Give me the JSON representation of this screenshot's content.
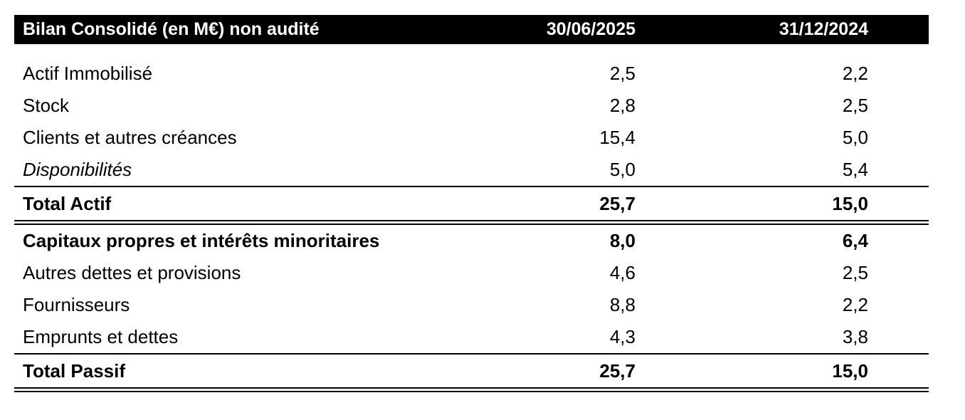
{
  "page": {
    "background": "#ffffff"
  },
  "table": {
    "title": "Bilan Consolidé (en M€) non audité",
    "columns": [
      "30/06/2025",
      "31/12/2024"
    ],
    "colors": {
      "header_bg": "#000000",
      "header_text": "#ffffff",
      "body_text": "#000000",
      "rule": "#000000"
    },
    "rows": [
      {
        "label": "Actif Immobilisé",
        "val_2025": "2,5",
        "val_2024": "2,2"
      },
      {
        "label": "Stock",
        "val_2025": "2,8",
        "val_2024": "2,5"
      },
      {
        "label": "Clients et autres créances",
        "val_2025": "15,4",
        "val_2024": "5,0"
      },
      {
        "label": "Disponibilités",
        "val_2025": "5,0",
        "val_2024": "5,4"
      },
      {
        "label": "Total Actif",
        "val_2025": "25,7",
        "val_2024": "15,0"
      },
      {
        "label": "Capitaux propres et intérêts minoritaires",
        "val_2025": "8,0",
        "val_2024": "6,4"
      },
      {
        "label": "Autres dettes et provisions",
        "val_2025": "4,6",
        "val_2024": "2,5"
      },
      {
        "label": "Fournisseurs",
        "val_2025": "8,8",
        "val_2024": "2,2"
      },
      {
        "label": "Emprunts et dettes",
        "val_2025": "4,3",
        "val_2024": "3,8"
      },
      {
        "label": "Total Passif",
        "val_2025": "25,7",
        "val_2024": "15,0"
      }
    ]
  }
}
